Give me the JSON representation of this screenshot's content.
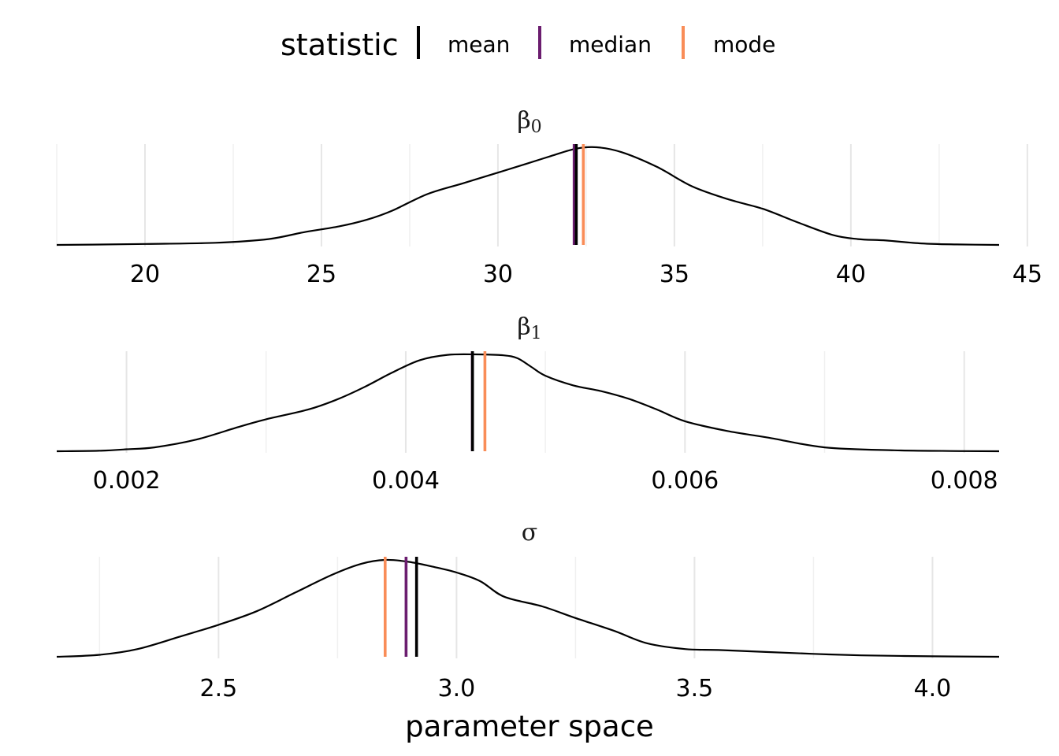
{
  "legend": {
    "title": "statistic",
    "items": [
      {
        "label": "mean",
        "color": "#000000"
      },
      {
        "label": "median",
        "color": "#6B1D6F"
      },
      {
        "label": "mode",
        "color": "#F98D58"
      }
    ]
  },
  "x_title": "parameter space",
  "chart_data": [
    {
      "type": "area",
      "facet": "β0",
      "facet_symbol": "β",
      "facet_subscript": "0",
      "xlim": [
        17.5,
        44.2
      ],
      "ticks": [
        20,
        25,
        30,
        35,
        40,
        45
      ],
      "tick_labels": [
        "20",
        "25",
        "30",
        "35",
        "40",
        "45"
      ],
      "minor_ticks": [
        17.5,
        22.5,
        27.5,
        32.5,
        37.5,
        42.5
      ],
      "density": {
        "x": [
          17.5,
          18.5,
          20.0,
          22.0,
          23.5,
          24.5,
          25.5,
          26.3,
          27.0,
          28.0,
          29.0,
          30.0,
          30.8,
          31.5,
          32.2,
          32.8,
          33.5,
          34.5,
          35.5,
          36.5,
          37.5,
          38.5,
          39.5,
          40.2,
          41.0,
          42.0,
          43.0,
          44.2
        ],
        "y": [
          0.0,
          0.003,
          0.01,
          0.022,
          0.06,
          0.13,
          0.19,
          0.26,
          0.35,
          0.52,
          0.63,
          0.74,
          0.83,
          0.91,
          0.985,
          1.0,
          0.95,
          0.8,
          0.6,
          0.47,
          0.37,
          0.23,
          0.1,
          0.06,
          0.045,
          0.015,
          0.005,
          0.0
        ]
      },
      "statistics": {
        "mean": 32.22,
        "median": 32.16,
        "mode": 32.42
      }
    },
    {
      "type": "area",
      "facet": "β1",
      "facet_symbol": "β",
      "facet_subscript": "1",
      "xlim": [
        0.0015,
        0.00825
      ],
      "ticks": [
        0.002,
        0.004,
        0.006,
        0.008
      ],
      "tick_labels": [
        "0.002",
        "0.004",
        "0.006",
        "0.008"
      ],
      "minor_ticks": [
        0.003,
        0.005,
        0.007
      ],
      "density": {
        "x": [
          0.0015,
          0.0018,
          0.002,
          0.0022,
          0.0025,
          0.0028,
          0.003,
          0.0033,
          0.0035,
          0.0037,
          0.0039,
          0.0041,
          0.0043,
          0.0045,
          0.0047,
          0.0048,
          0.0049,
          0.005,
          0.0052,
          0.0054,
          0.0056,
          0.0058,
          0.006,
          0.0063,
          0.0066,
          0.007,
          0.0075,
          0.008,
          0.00825
        ],
        "y": [
          0.0,
          0.005,
          0.02,
          0.04,
          0.12,
          0.25,
          0.33,
          0.43,
          0.53,
          0.66,
          0.81,
          0.94,
          0.995,
          1.0,
          0.99,
          0.96,
          0.87,
          0.78,
          0.68,
          0.62,
          0.54,
          0.43,
          0.31,
          0.21,
          0.14,
          0.04,
          0.01,
          0.002,
          0.0
        ]
      },
      "statistics": {
        "mean": 0.004478,
        "median": 0.004477,
        "mode": 0.004567
      }
    },
    {
      "type": "area",
      "facet": "σ",
      "facet_symbol": "σ",
      "facet_subscript": "",
      "xlim": [
        2.16,
        4.14
      ],
      "ticks": [
        2.5,
        3.0,
        3.5,
        4.0
      ],
      "tick_labels": [
        "2.5",
        "3.0",
        "3.5",
        "4.0"
      ],
      "minor_ticks": [
        2.25,
        2.75,
        3.25,
        3.75
      ],
      "density": {
        "x": [
          2.16,
          2.25,
          2.33,
          2.42,
          2.5,
          2.58,
          2.66,
          2.74,
          2.8,
          2.85,
          2.9,
          2.95,
          3.0,
          3.05,
          3.1,
          3.18,
          3.25,
          3.33,
          3.4,
          3.48,
          3.55,
          3.65,
          3.75,
          3.85,
          4.0,
          4.14
        ],
        "y": [
          0.0,
          0.02,
          0.08,
          0.21,
          0.33,
          0.47,
          0.66,
          0.85,
          0.96,
          1.0,
          0.98,
          0.93,
          0.87,
          0.78,
          0.62,
          0.52,
          0.4,
          0.27,
          0.14,
          0.08,
          0.07,
          0.05,
          0.03,
          0.015,
          0.005,
          0.0
        ]
      },
      "statistics": {
        "mean": 2.916,
        "median": 2.894,
        "mode": 2.85
      }
    }
  ]
}
